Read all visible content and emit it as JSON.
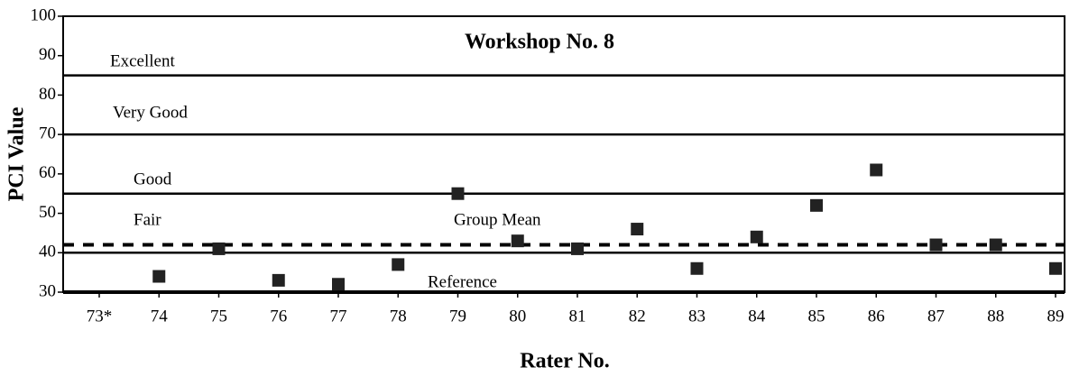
{
  "chart_data": {
    "type": "scatter",
    "title": "Workshop No. 8",
    "xlabel": "Rater No.",
    "ylabel": "PCI Value",
    "categories": [
      "73*",
      "74",
      "75",
      "76",
      "77",
      "78",
      "79",
      "80",
      "81",
      "82",
      "83",
      "84",
      "85",
      "86",
      "87",
      "88",
      "89"
    ],
    "values": [
      null,
      34,
      41,
      33,
      32,
      37,
      55,
      43,
      41,
      46,
      36,
      44,
      52,
      61,
      42,
      42,
      36
    ],
    "color": "#222222",
    "ylim": [
      30,
      100
    ],
    "yticks": [
      30,
      40,
      50,
      60,
      70,
      80,
      90,
      100
    ],
    "band_lines": [
      40,
      55,
      70,
      85
    ],
    "band_labels": [
      "Excellent",
      "Very Good",
      "Good",
      "Fair"
    ],
    "group_mean": 42,
    "group_mean_label": "Group Mean",
    "reference_label": "Reference"
  }
}
